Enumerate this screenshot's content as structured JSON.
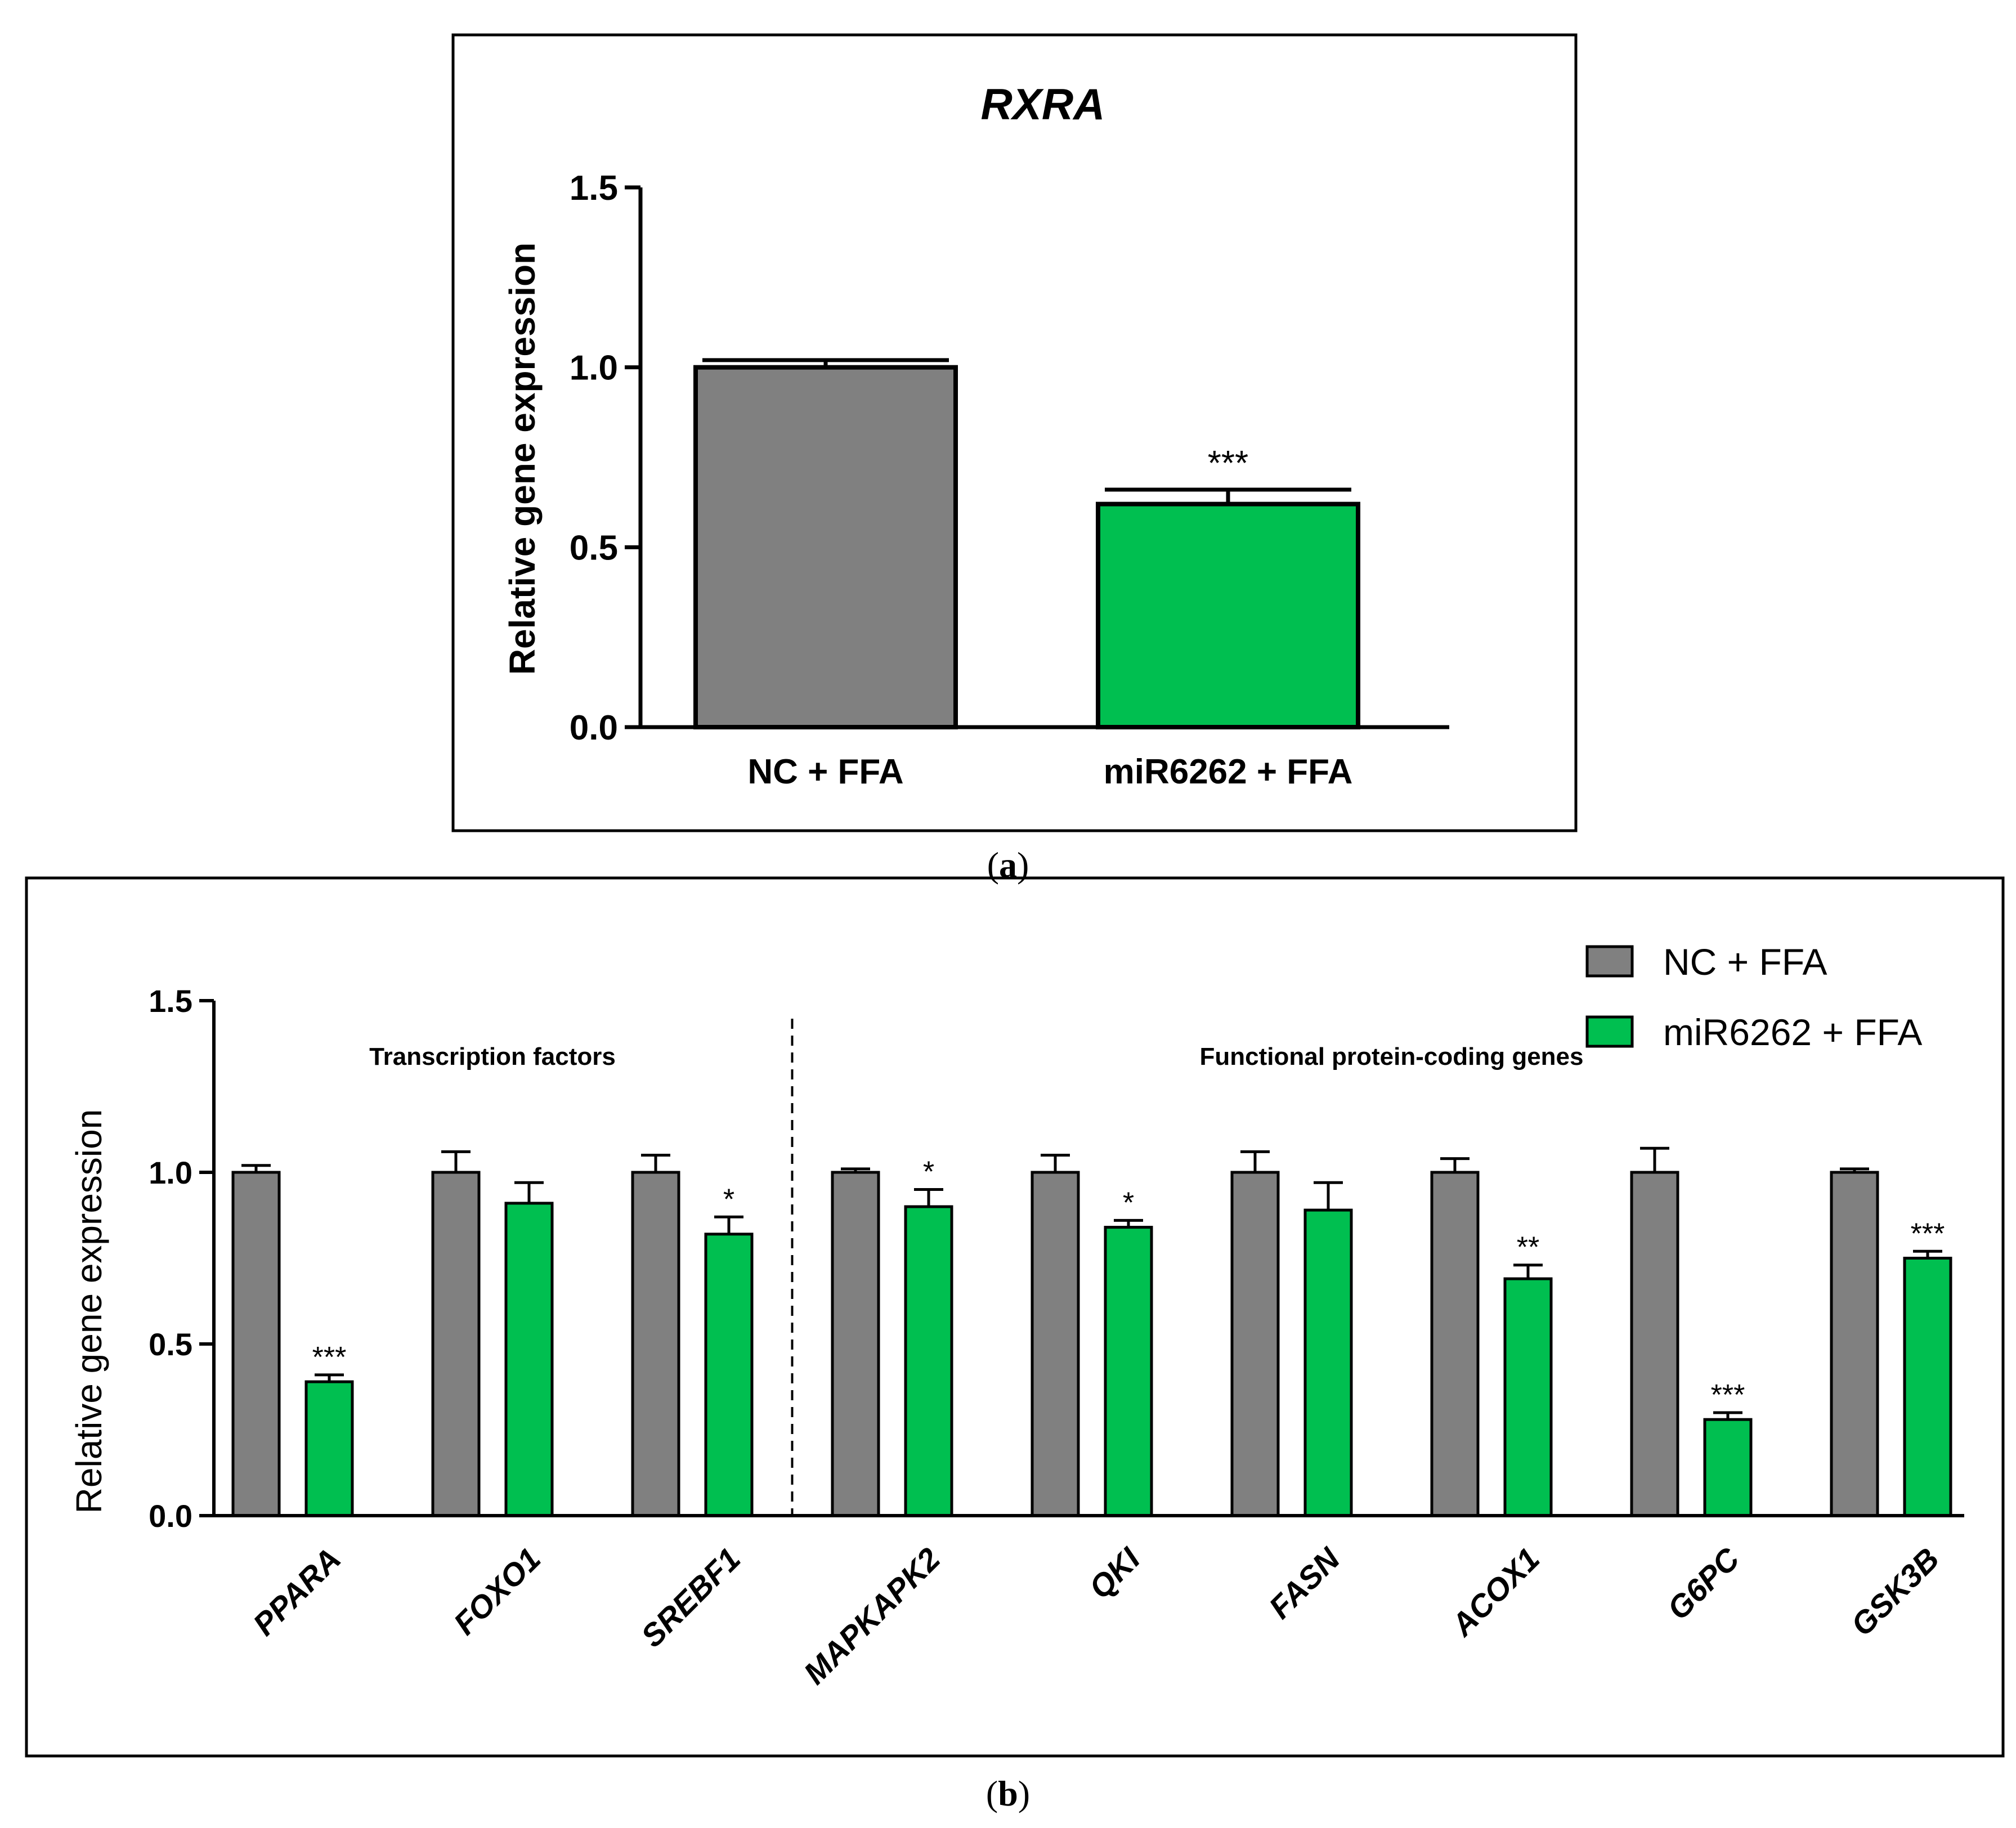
{
  "colors": {
    "control": "#808080",
    "treated": "#00BF50",
    "axis": "#000000"
  },
  "panel_a": {
    "caption_letter": "a",
    "chart_data": {
      "type": "bar",
      "title": "RXRA",
      "ylabel": "Relative gene expression",
      "xlabel": "",
      "ylim": [
        0,
        1.5
      ],
      "yticks": [
        "0.0",
        "0.5",
        "1.0",
        "1.5"
      ],
      "categories": [
        "NC + FFA",
        "miR6262 + FFA"
      ],
      "values": [
        1.0,
        0.62
      ],
      "errors": [
        0.02,
        0.04
      ],
      "significance": [
        "",
        "***"
      ],
      "series_colors": [
        "control",
        "treated"
      ]
    }
  },
  "panel_b": {
    "caption_letter": "b",
    "chart_data": {
      "type": "bar",
      "title": "",
      "ylabel": "Relative gene expression",
      "xlabel": "",
      "ylim": [
        0,
        1.5
      ],
      "yticks": [
        "0.0",
        "0.5",
        "1.0",
        "1.5"
      ],
      "categories": [
        "PPARA",
        "FOXO1",
        "SREBF1",
        "MAPKAPK2",
        "QKI",
        "FASN",
        "ACOX1",
        "G6PC",
        "GSK3B"
      ],
      "series": [
        {
          "name": "NC + FFA",
          "color": "control",
          "values": [
            1.0,
            1.0,
            1.0,
            1.0,
            1.0,
            1.0,
            1.0,
            1.0,
            1.0
          ],
          "errors": [
            0.02,
            0.06,
            0.05,
            0.01,
            0.05,
            0.06,
            0.04,
            0.07,
            0.01
          ]
        },
        {
          "name": "miR6262 + FFA",
          "color": "treated",
          "values": [
            0.39,
            0.91,
            0.82,
            0.9,
            0.84,
            0.89,
            0.69,
            0.28,
            0.75
          ],
          "errors": [
            0.02,
            0.06,
            0.05,
            0.05,
            0.02,
            0.08,
            0.04,
            0.02,
            0.02
          ]
        }
      ],
      "significance": [
        "***",
        "",
        "*",
        "*",
        "*",
        "",
        "**",
        "***",
        "***"
      ],
      "groups": [
        {
          "label": "Transcription factors",
          "from": 0,
          "to": 2
        },
        {
          "label": "Functional protein-coding genes",
          "from": 3,
          "to": 8
        }
      ],
      "legend_position": "top-right"
    }
  }
}
